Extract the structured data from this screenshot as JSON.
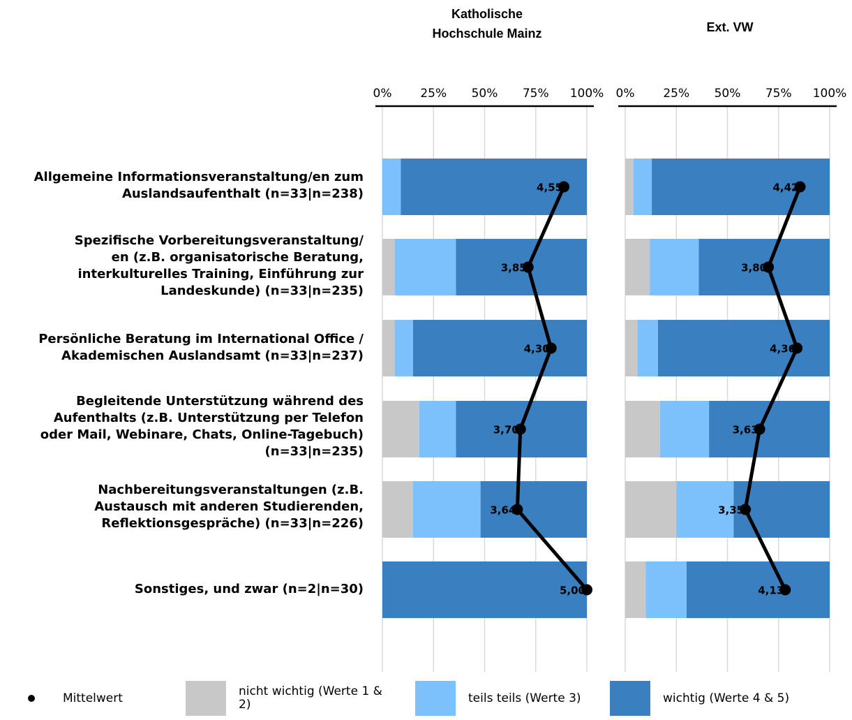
{
  "chart_data": {
    "type": "bar",
    "stacked": true,
    "orientation": "horizontal",
    "panels": [
      {
        "title_line1": "Katholische",
        "title_line2": "Hochschule Mainz",
        "series": [
          {
            "name": "nicht wichtig (Werte 1 & 2)",
            "values": [
              0,
              6,
              6,
              18,
              15,
              0
            ]
          },
          {
            "name": "teils teils (Werte 3)",
            "values": [
              9,
              30,
              9,
              18,
              33,
              0
            ]
          },
          {
            "name": "wichtig (Werte 4 & 5)",
            "values": [
              91,
              64,
              85,
              64,
              52,
              100
            ]
          }
        ],
        "means": [
          4.55,
          3.85,
          4.3,
          3.7,
          3.64,
          5.0
        ],
        "mean_labels": [
          "4,55",
          "3,85",
          "4,30",
          "3,70",
          "3,64",
          "5,00"
        ]
      },
      {
        "title_line1": "Ext. VW",
        "title_line2": "",
        "series": [
          {
            "name": "nicht wichtig (Werte 1 & 2)",
            "values": [
              4,
              12,
              6,
              17,
              25,
              10
            ]
          },
          {
            "name": "teils teils (Werte 3)",
            "values": [
              9,
              24,
              10,
              24,
              28,
              20
            ]
          },
          {
            "name": "wichtig (Werte 4 & 5)",
            "values": [
              87,
              64,
              84,
              59,
              47,
              70
            ]
          }
        ],
        "means": [
          4.42,
          3.8,
          4.36,
          3.63,
          3.35,
          4.13
        ],
        "mean_labels": [
          "4,42",
          "3,80",
          "4,36",
          "3,63",
          "3,35",
          "4,13"
        ]
      }
    ],
    "categories": [
      [
        "Allgemeine Informationsveranstaltung/en zum",
        "Auslandsaufenthalt (n=33|n=238)"
      ],
      [
        "Spezifische Vorbereitungsveranstaltung/",
        "en (z.B. organisatorische Beratung,",
        "interkulturelles Training, Einführung zur",
        "Landeskunde) (n=33|n=235)"
      ],
      [
        "Persönliche Beratung im International Office /",
        "Akademischen Auslandsamt (n=33|n=237)"
      ],
      [
        "Begleitende Unterstützung während des",
        "Aufenthalts (z.B. Unterstützung per Telefon",
        "oder Mail, Webinare, Chats, Online-Tagebuch)",
        "(n=33|n=235)"
      ],
      [
        "Nachbereitungsveranstaltungen (z.B.",
        "Austausch mit anderen Studierenden,",
        "Reflektionsgespräche) (n=33|n=226)"
      ],
      [
        "Sonstiges, und zwar (n=2|n=30)"
      ]
    ],
    "x_ticks": [
      "0%",
      "25%",
      "50%",
      "75%",
      "100%"
    ],
    "xlim": [
      0,
      100
    ],
    "mean_scale": [
      1,
      5
    ],
    "grid": true,
    "legend_position": "bottom",
    "colors": {
      "nicht wichtig": "#c8c8c8",
      "teils teils": "#7dc1fc",
      "wichtig": "#3a80c1",
      "mean": "#000000",
      "grid": "#d9d9d9"
    }
  },
  "legend": {
    "mean": "Mittelwert",
    "nicht_wichtig_line1": "nicht wichtig (Werte 1 &",
    "nicht_wichtig_line2": "2)",
    "teils": "teils teils (Werte 3)",
    "wichtig": "wichtig (Werte 4 & 5)"
  }
}
